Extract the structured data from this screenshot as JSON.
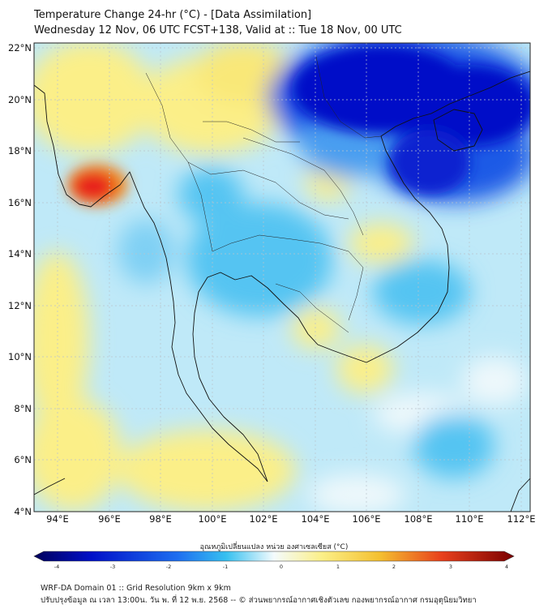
{
  "header": {
    "title": "Temperature Change 24-hr (°C) - [Data Assimilation]",
    "subtitle": "Wednesday 12 Nov, 06 UTC FCST+138, Valid at :: Tue 18 Nov, 00 UTC"
  },
  "map": {
    "lon_labels": [
      "94°E",
      "96°E",
      "98°E",
      "100°E",
      "102°E",
      "104°E",
      "106°E",
      "108°E",
      "110°E",
      "112°E"
    ],
    "lat_labels": [
      "22°N",
      "20°N",
      "18°N",
      "16°N",
      "14°N",
      "12°N",
      "10°N",
      "8°N",
      "6°N",
      "4°N"
    ],
    "lon_range": [
      93,
      112.3
    ],
    "lat_range": [
      4,
      22.2
    ],
    "colors": {
      "strong_cold": "#0010c8",
      "cold": "#36a8f0",
      "mild_cold": "#9fdcf6",
      "neutral": "#eef8fb",
      "mild_warm": "#fbef88",
      "warm": "#f4c030",
      "hot": "#e8201c"
    }
  },
  "colorbar": {
    "label": "อุณหภูมิเปลี่ยนแปลง หน่วย องศาเซลเซียส (°C)",
    "ticks": [
      "-4",
      "-3",
      "-2",
      "-1",
      "0",
      "1",
      "2",
      "3",
      "4"
    ],
    "range": [
      -4,
      4
    ]
  },
  "footer": {
    "line1": "WRF-DA Domain 01 :: Grid Resolution 9km x 9km",
    "line2": "ปรับปรุงข้อมูล ณ เวลา 13:00น. วัน พ. ที่ 12 พ.ย. 2568 -- © ส่วนพยากรณ์อากาศเชิงตัวเลข กองพยากรณ์อากาศ กรมอุตุนิยมวิทยา"
  }
}
